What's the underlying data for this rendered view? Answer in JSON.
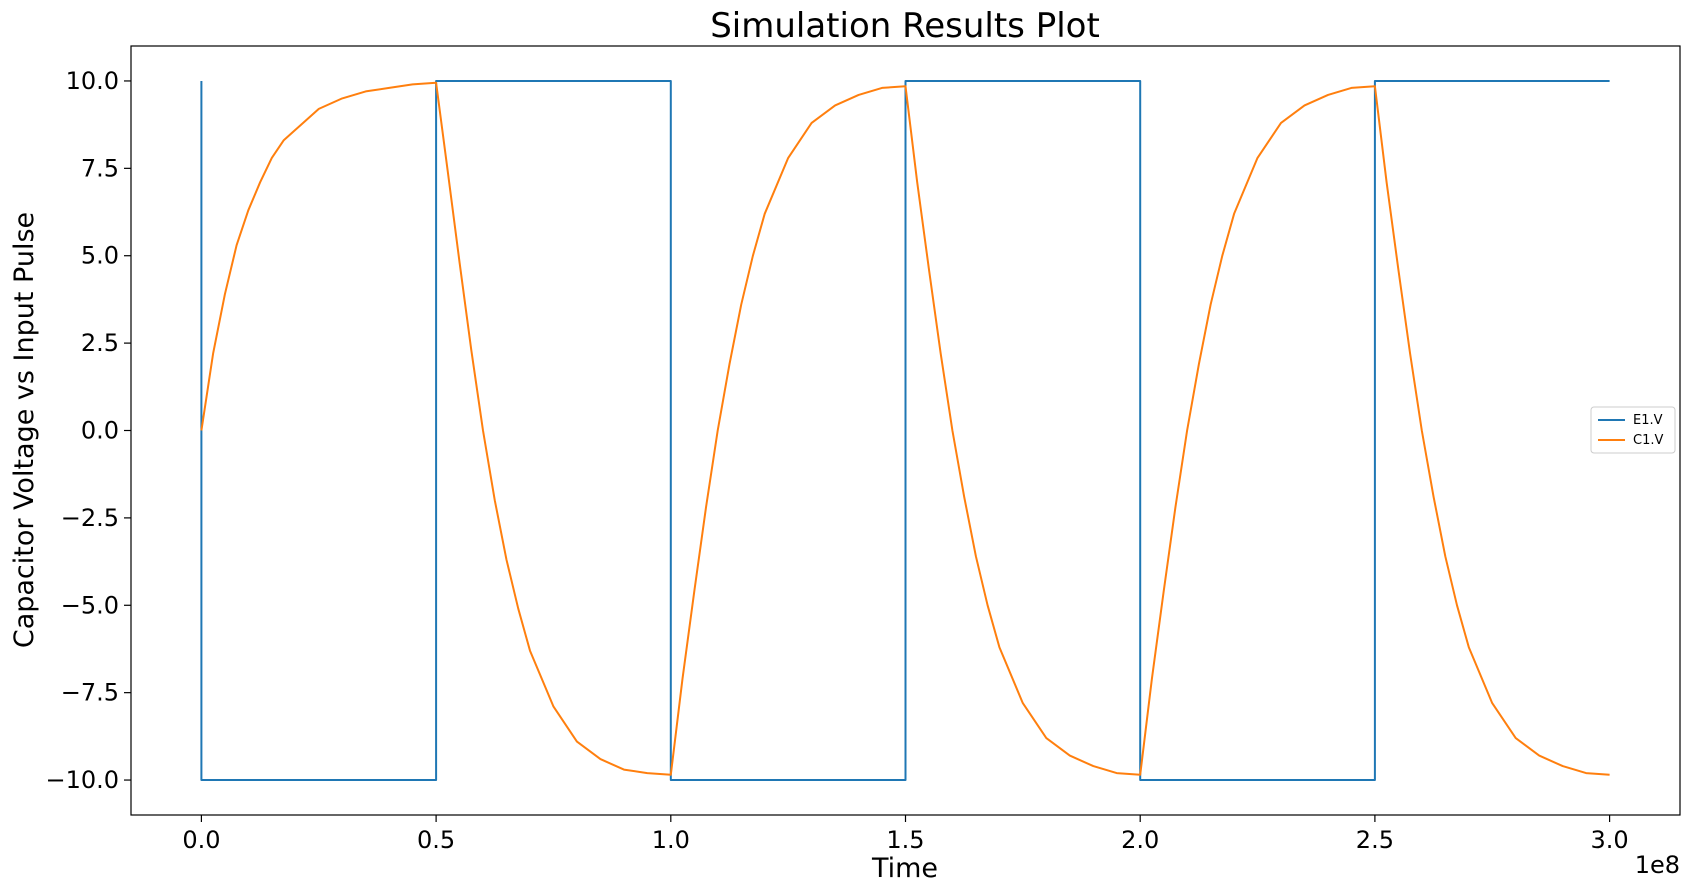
{
  "chart_data": {
    "type": "line",
    "title": "Simulation Results Plot",
    "xlabel": "Time",
    "ylabel": "Capacitor Voltage vs Input Pulse",
    "x_offset_text": "1e8",
    "xlim": [
      -0.15,
      3.15
    ],
    "ylim": [
      -11.0,
      11.0
    ],
    "x_ticks": [
      0.0,
      0.5,
      1.0,
      1.5,
      2.0,
      2.5,
      3.0
    ],
    "x_tick_labels": [
      "0.0",
      "0.5",
      "1.0",
      "1.5",
      "2.0",
      "2.5",
      "3.0"
    ],
    "y_ticks": [
      10.0,
      7.5,
      5.0,
      2.5,
      0.0,
      -2.5,
      -5.0,
      -7.5,
      -10.0
    ],
    "y_tick_labels": [
      "10.0",
      "7.5",
      "5.0",
      "2.5",
      "0.0",
      "−2.5",
      "−5.0",
      "−7.5",
      "−10.0"
    ],
    "grid": false,
    "legend_position": "center-right",
    "series": [
      {
        "name": "E1.V",
        "color": "#1f77b4",
        "x": [
          0.0,
          0.0,
          0.5,
          0.5,
          1.0,
          1.0,
          1.5,
          1.5,
          2.0,
          2.0,
          2.5,
          2.5,
          3.0
        ],
        "y": [
          10.0,
          -10.0,
          -10.0,
          10.0,
          10.0,
          -10.0,
          -10.0,
          10.0,
          10.0,
          -10.0,
          -10.0,
          10.0,
          10.0
        ]
      },
      {
        "name": "C1.V",
        "color": "#ff7f0e",
        "x": [
          0.0,
          0.025,
          0.05,
          0.075,
          0.1,
          0.125,
          0.15,
          0.175,
          0.2,
          0.25,
          0.3,
          0.35,
          0.4,
          0.45,
          0.5,
          0.525,
          0.55,
          0.575,
          0.6,
          0.625,
          0.65,
          0.675,
          0.7,
          0.75,
          0.8,
          0.85,
          0.9,
          0.95,
          1.0,
          1.025,
          1.05,
          1.075,
          1.1,
          1.125,
          1.15,
          1.175,
          1.2,
          1.25,
          1.3,
          1.35,
          1.4,
          1.45,
          1.5,
          1.525,
          1.55,
          1.575,
          1.6,
          1.625,
          1.65,
          1.675,
          1.7,
          1.75,
          1.8,
          1.85,
          1.9,
          1.95,
          2.0,
          2.025,
          2.05,
          2.075,
          2.1,
          2.125,
          2.15,
          2.175,
          2.2,
          2.25,
          2.3,
          2.35,
          2.4,
          2.45,
          2.5,
          2.525,
          2.55,
          2.575,
          2.6,
          2.625,
          2.65,
          2.675,
          2.7,
          2.75,
          2.8,
          2.85,
          2.9,
          2.95,
          3.0
        ],
        "y": [
          0.0,
          2.2,
          3.9,
          5.3,
          6.3,
          7.1,
          7.8,
          8.3,
          8.6,
          9.2,
          9.5,
          9.7,
          9.8,
          9.9,
          9.95,
          7.4,
          4.8,
          2.3,
          0.0,
          -2.0,
          -3.7,
          -5.1,
          -6.3,
          -7.9,
          -8.9,
          -9.4,
          -9.7,
          -9.8,
          -9.85,
          -7.1,
          -4.6,
          -2.2,
          0.0,
          1.9,
          3.6,
          5.0,
          6.2,
          7.8,
          8.8,
          9.3,
          9.6,
          9.8,
          9.85,
          7.1,
          4.6,
          2.2,
          0.0,
          -1.9,
          -3.6,
          -5.0,
          -6.2,
          -7.8,
          -8.8,
          -9.3,
          -9.6,
          -9.8,
          -9.85,
          -7.1,
          -4.6,
          -2.2,
          0.0,
          1.9,
          3.6,
          5.0,
          6.2,
          7.8,
          8.8,
          9.3,
          9.6,
          9.8,
          9.85,
          7.1,
          4.6,
          2.2,
          0.0,
          -1.9,
          -3.6,
          -5.0,
          -6.2,
          -7.8,
          -8.8,
          -9.3,
          -9.6,
          -9.8,
          -9.85
        ]
      }
    ]
  }
}
